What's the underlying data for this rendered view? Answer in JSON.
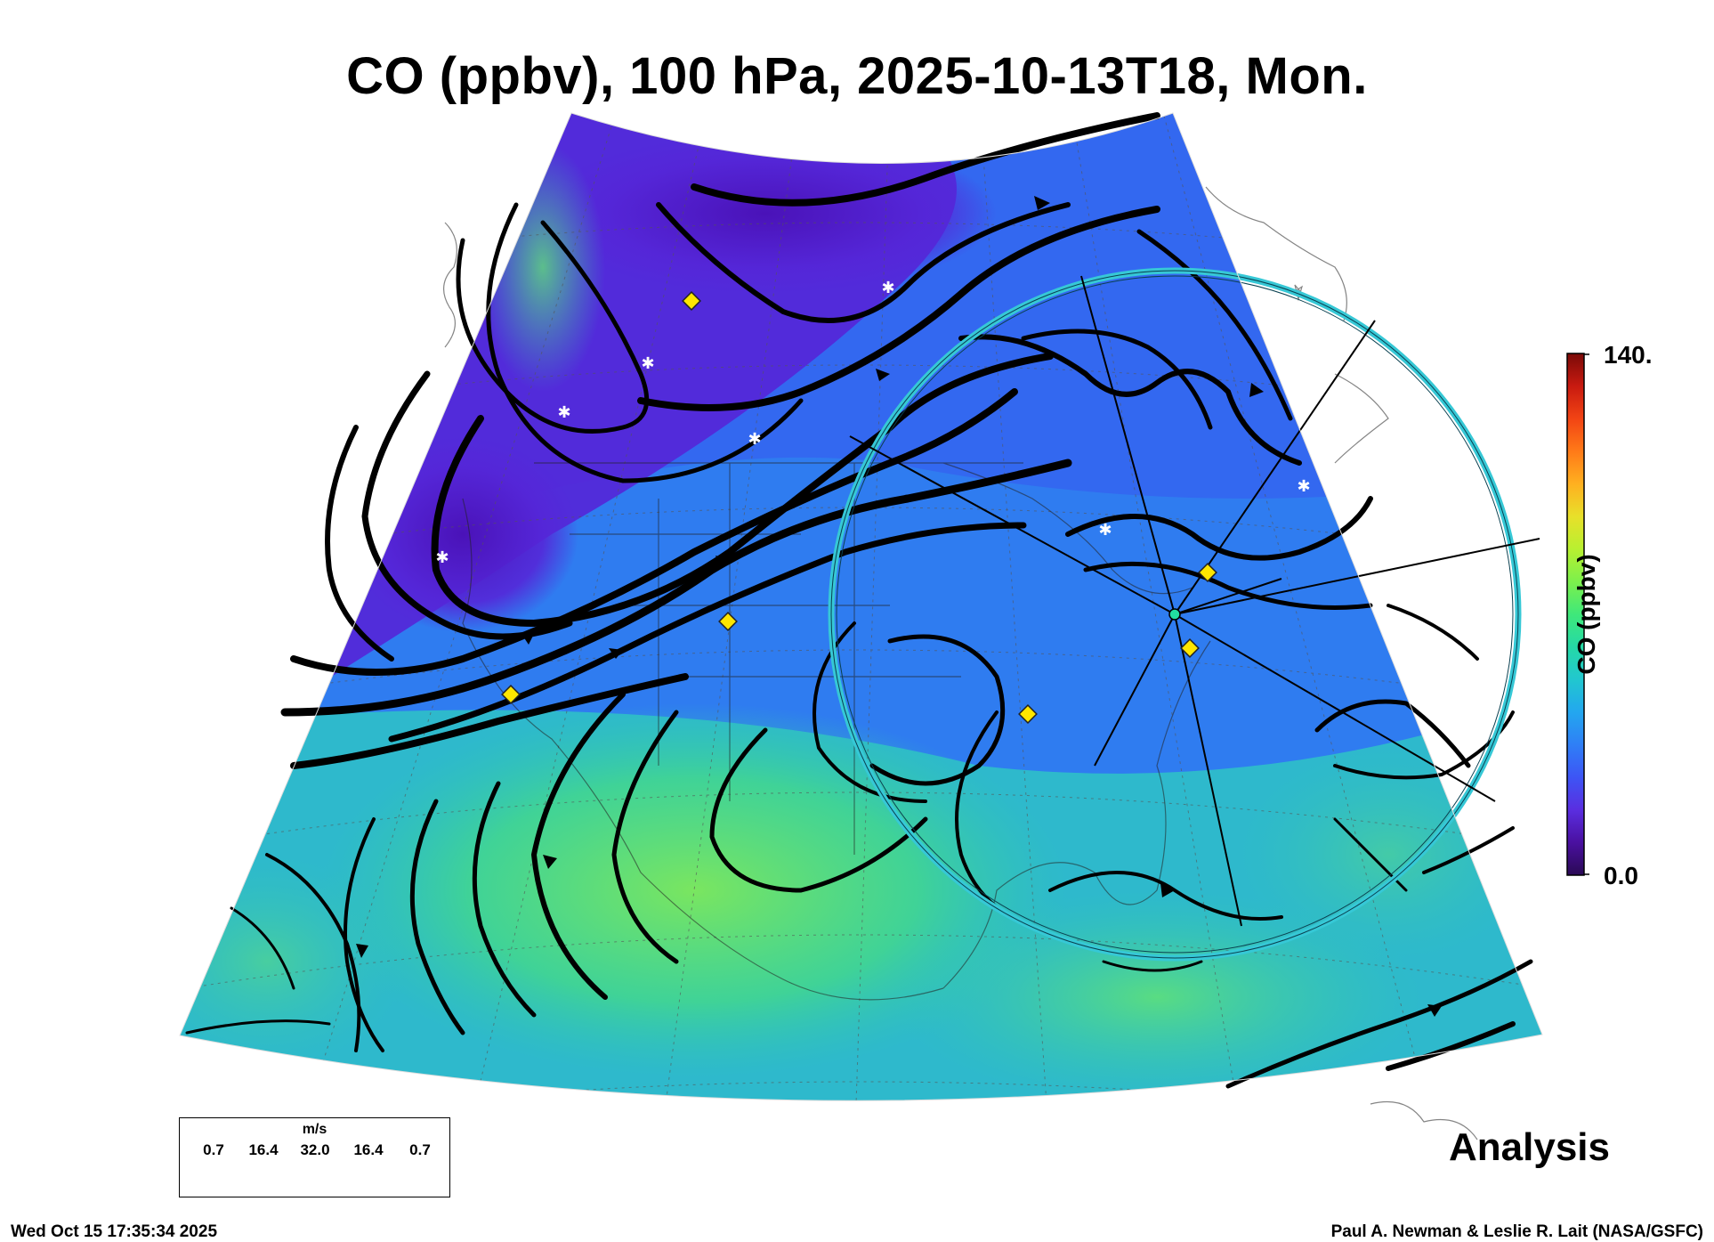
{
  "header": {
    "title": "CO (ppbv), 100 hPa, 2025-10-13T18, Mon."
  },
  "panel_label": "Analysis",
  "footer": {
    "timestamp": "Wed Oct 15 17:35:34 2025",
    "credit": "Paul A. Newman & Leslie R. Lait (NASA/GSFC)"
  },
  "colorbar": {
    "label": "CO (ppbv)",
    "max_label": "140.",
    "min_label": "0.0",
    "vmin": 0.0,
    "vmax": 140.0,
    "colors": [
      "#2a0a55",
      "#4a10a0",
      "#5a2ee0",
      "#3d55f5",
      "#2f7ff6",
      "#23a7ef",
      "#21c7cf",
      "#25d9a6",
      "#3fe87a",
      "#7cf04c",
      "#b8f030",
      "#e8e02a",
      "#ffb020",
      "#ff7a18",
      "#f24414",
      "#c81a10",
      "#7a0a08"
    ]
  },
  "wind_legend": {
    "unit": "m/s",
    "values": [
      "0.7",
      "16.4",
      "32.0",
      "16.4",
      "0.7"
    ]
  },
  "map": {
    "field_colors": {
      "low": "#5522cc",
      "mid": "#2f78f0",
      "high": "#4ee07a"
    },
    "streamline_color": "#000000",
    "ring_color": "#36c8d6",
    "diamond_color": "#ffe600",
    "star_color": "#ffffff"
  }
}
